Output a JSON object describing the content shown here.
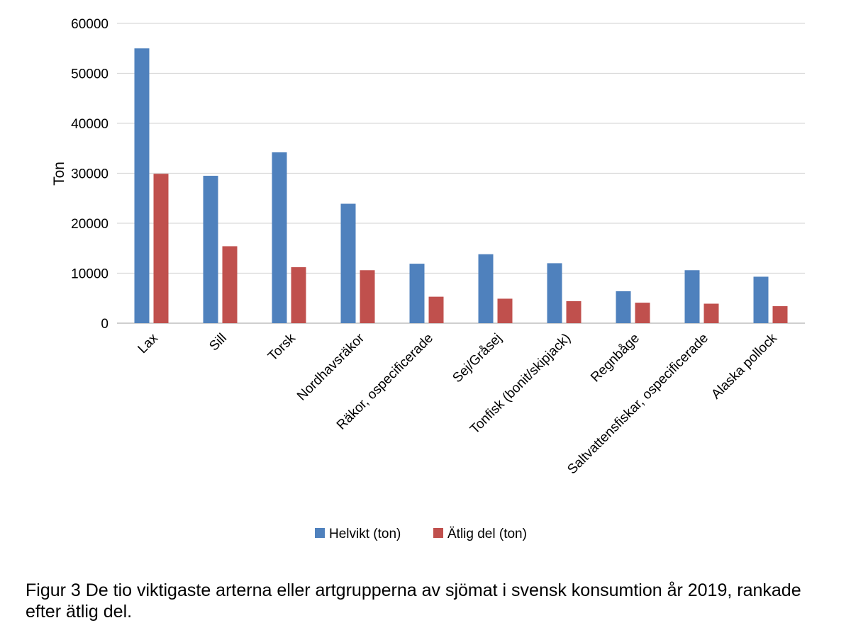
{
  "chart_data": {
    "type": "bar",
    "title": "",
    "xlabel": "",
    "ylabel": "Ton",
    "ylim": [
      0,
      60000
    ],
    "yticks": [
      0,
      10000,
      20000,
      30000,
      40000,
      50000,
      60000
    ],
    "grid": true,
    "legend_position": "bottom",
    "categories": [
      "Lax",
      "Sill",
      "Torsk",
      "Nordhavsräkor",
      "Räkor, ospecificerade",
      "Sej/Gråsej",
      "Tonfisk (bonit/skipjack)",
      "Regnbåge",
      "Saltvattensfiskar, ospecificerade",
      "Alaska pollock"
    ],
    "series": [
      {
        "name": "Helvikt (ton)",
        "color": "#4f81bd",
        "values": [
          55000,
          29500,
          34200,
          23900,
          11900,
          13800,
          12000,
          6400,
          10600,
          9300
        ]
      },
      {
        "name": "Ätlig del (ton)",
        "color": "#c0504d",
        "values": [
          29900,
          15400,
          11200,
          10600,
          5300,
          4900,
          4400,
          4100,
          3900,
          3400
        ]
      }
    ]
  },
  "caption": "Figur 3 De tio viktigaste arterna eller artgrupperna av sjömat i svensk konsumtion år 2019, rankade efter ätlig del."
}
